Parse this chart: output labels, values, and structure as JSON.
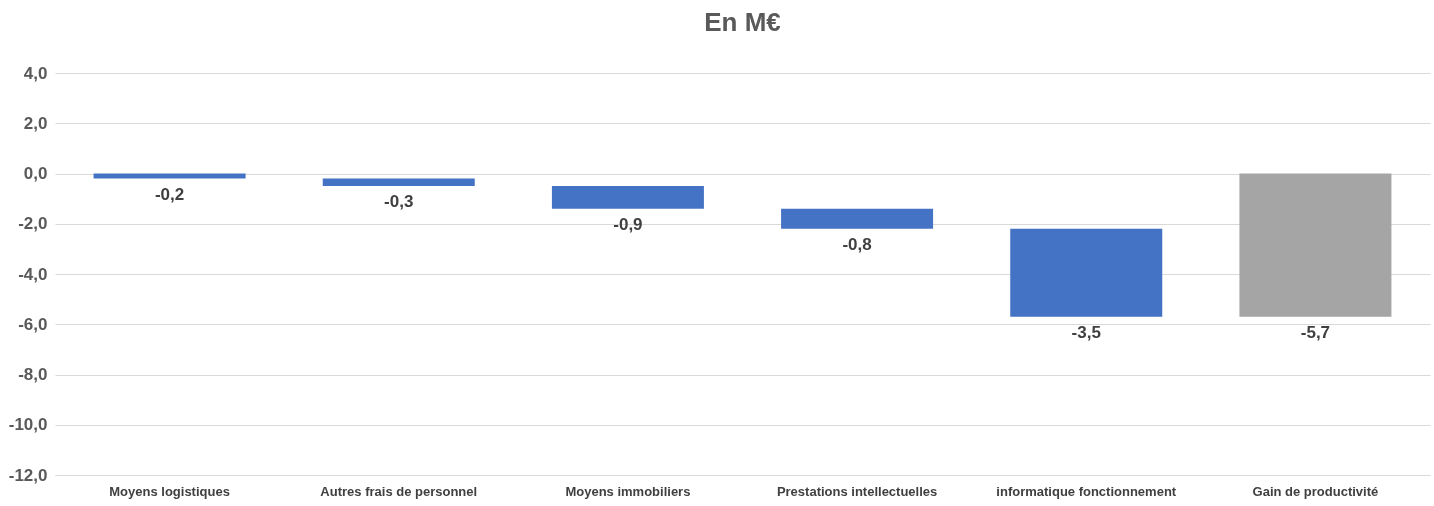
{
  "chart_data": {
    "type": "bar",
    "title": "En M€",
    "categories": [
      "Moyens logistiques",
      "Autres frais de personnel",
      "Moyens immobiliers",
      "Prestations intellectuelles",
      "informatique fonctionnement",
      "Gain de productivité"
    ],
    "values": [
      -0.2,
      -0.3,
      -0.9,
      -0.8,
      -3.5,
      -5.7
    ],
    "base": [
      0,
      -0.2,
      -0.5,
      -1.4,
      -2.2,
      0
    ],
    "colors": [
      "#4472c4",
      "#4472c4",
      "#4472c4",
      "#4472c4",
      "#4472c4",
      "#a5a5a5"
    ],
    "value_labels": [
      "-0,2",
      "-0,3",
      "-0,9",
      "-0,8",
      "-3,5",
      "-5,7"
    ],
    "ylim": [
      -12,
      4
    ],
    "yticks": [
      {
        "value": 4,
        "label": "4,0"
      },
      {
        "value": 2,
        "label": "2,0"
      },
      {
        "value": 0,
        "label": "0,0"
      },
      {
        "value": -2,
        "label": "-2,0"
      },
      {
        "value": -4,
        "label": "-4,0"
      },
      {
        "value": -6,
        "label": "-6,0"
      },
      {
        "value": -8,
        "label": "-8,0"
      },
      {
        "value": -10,
        "label": "-10,0"
      },
      {
        "value": -12,
        "label": "-12,0"
      }
    ],
    "grid": "y"
  }
}
